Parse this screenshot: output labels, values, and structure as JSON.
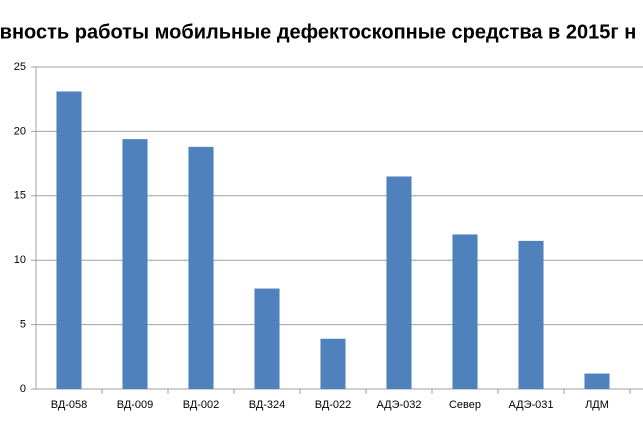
{
  "chart_data": {
    "type": "bar",
    "title": "вность работы мобильные дефектоскопные средства в 2015г н",
    "categories": [
      "ВД-058",
      "ВД-009",
      "ВД-002",
      "ВД-324",
      "ВД-022",
      "АДЭ-032",
      "Север",
      "АДЭ-031",
      "ЛДМ"
    ],
    "values": [
      23.1,
      19.4,
      18.8,
      7.8,
      3.9,
      16.5,
      12.0,
      11.5,
      1.2
    ],
    "color": "#4f81bd",
    "ylim": [
      0,
      25
    ],
    "yticks": [
      0,
      5,
      10,
      15,
      20,
      25
    ],
    "grid": true
  }
}
